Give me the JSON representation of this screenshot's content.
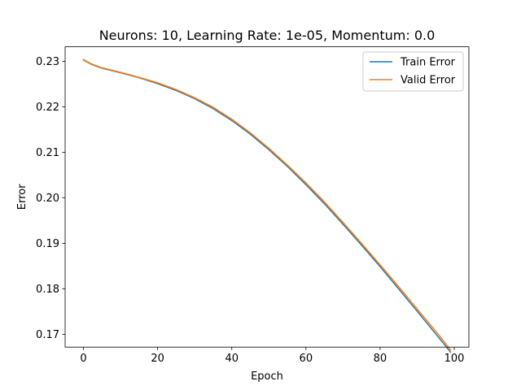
{
  "chart_data": {
    "type": "line",
    "title": "Neurons: 10, Learning Rate: 1e-05, Momentum: 0.0",
    "xlabel": "Epoch",
    "ylabel": "Error",
    "xlim": [
      -4.95,
      103.95
    ],
    "ylim": [
      0.1672,
      0.2332
    ],
    "xticks": [
      0,
      20,
      40,
      60,
      80,
      100
    ],
    "yticks": [
      0.17,
      0.18,
      0.19,
      0.2,
      0.21,
      0.22,
      0.23
    ],
    "xtick_labels": [
      "0",
      "20",
      "40",
      "60",
      "80",
      "100"
    ],
    "ytick_labels": [
      "0.17",
      "0.18",
      "0.19",
      "0.20",
      "0.21",
      "0.22",
      "0.23"
    ],
    "grid": false,
    "legend_position": "top-right",
    "series": [
      {
        "name": "Train Error",
        "color": "#1f77b4",
        "x": [
          0,
          2,
          5,
          10,
          15,
          20,
          25,
          30,
          35,
          40,
          45,
          50,
          55,
          60,
          65,
          70,
          75,
          80,
          85,
          90,
          95,
          99
        ],
        "y": [
          0.2303,
          0.2294,
          0.2285,
          0.2275,
          0.2264,
          0.2251,
          0.2236,
          0.2218,
          0.2196,
          0.217,
          0.214,
          0.2106,
          0.2069,
          0.2029,
          0.1987,
          0.1942,
          0.1896,
          0.1849,
          0.18,
          0.1751,
          0.1701,
          0.1661
        ]
      },
      {
        "name": "Valid Error",
        "color": "#ff7f0e",
        "x": [
          0,
          2,
          5,
          10,
          15,
          20,
          25,
          30,
          35,
          40,
          45,
          50,
          55,
          60,
          65,
          70,
          75,
          80,
          85,
          90,
          95,
          99
        ],
        "y": [
          0.2304,
          0.2295,
          0.2286,
          0.2276,
          0.2265,
          0.2253,
          0.2238,
          0.222,
          0.2199,
          0.2173,
          0.2143,
          0.2109,
          0.2072,
          0.2033,
          0.1991,
          0.1946,
          0.19,
          0.1853,
          0.1805,
          0.1756,
          0.1707,
          0.1666
        ]
      }
    ]
  }
}
